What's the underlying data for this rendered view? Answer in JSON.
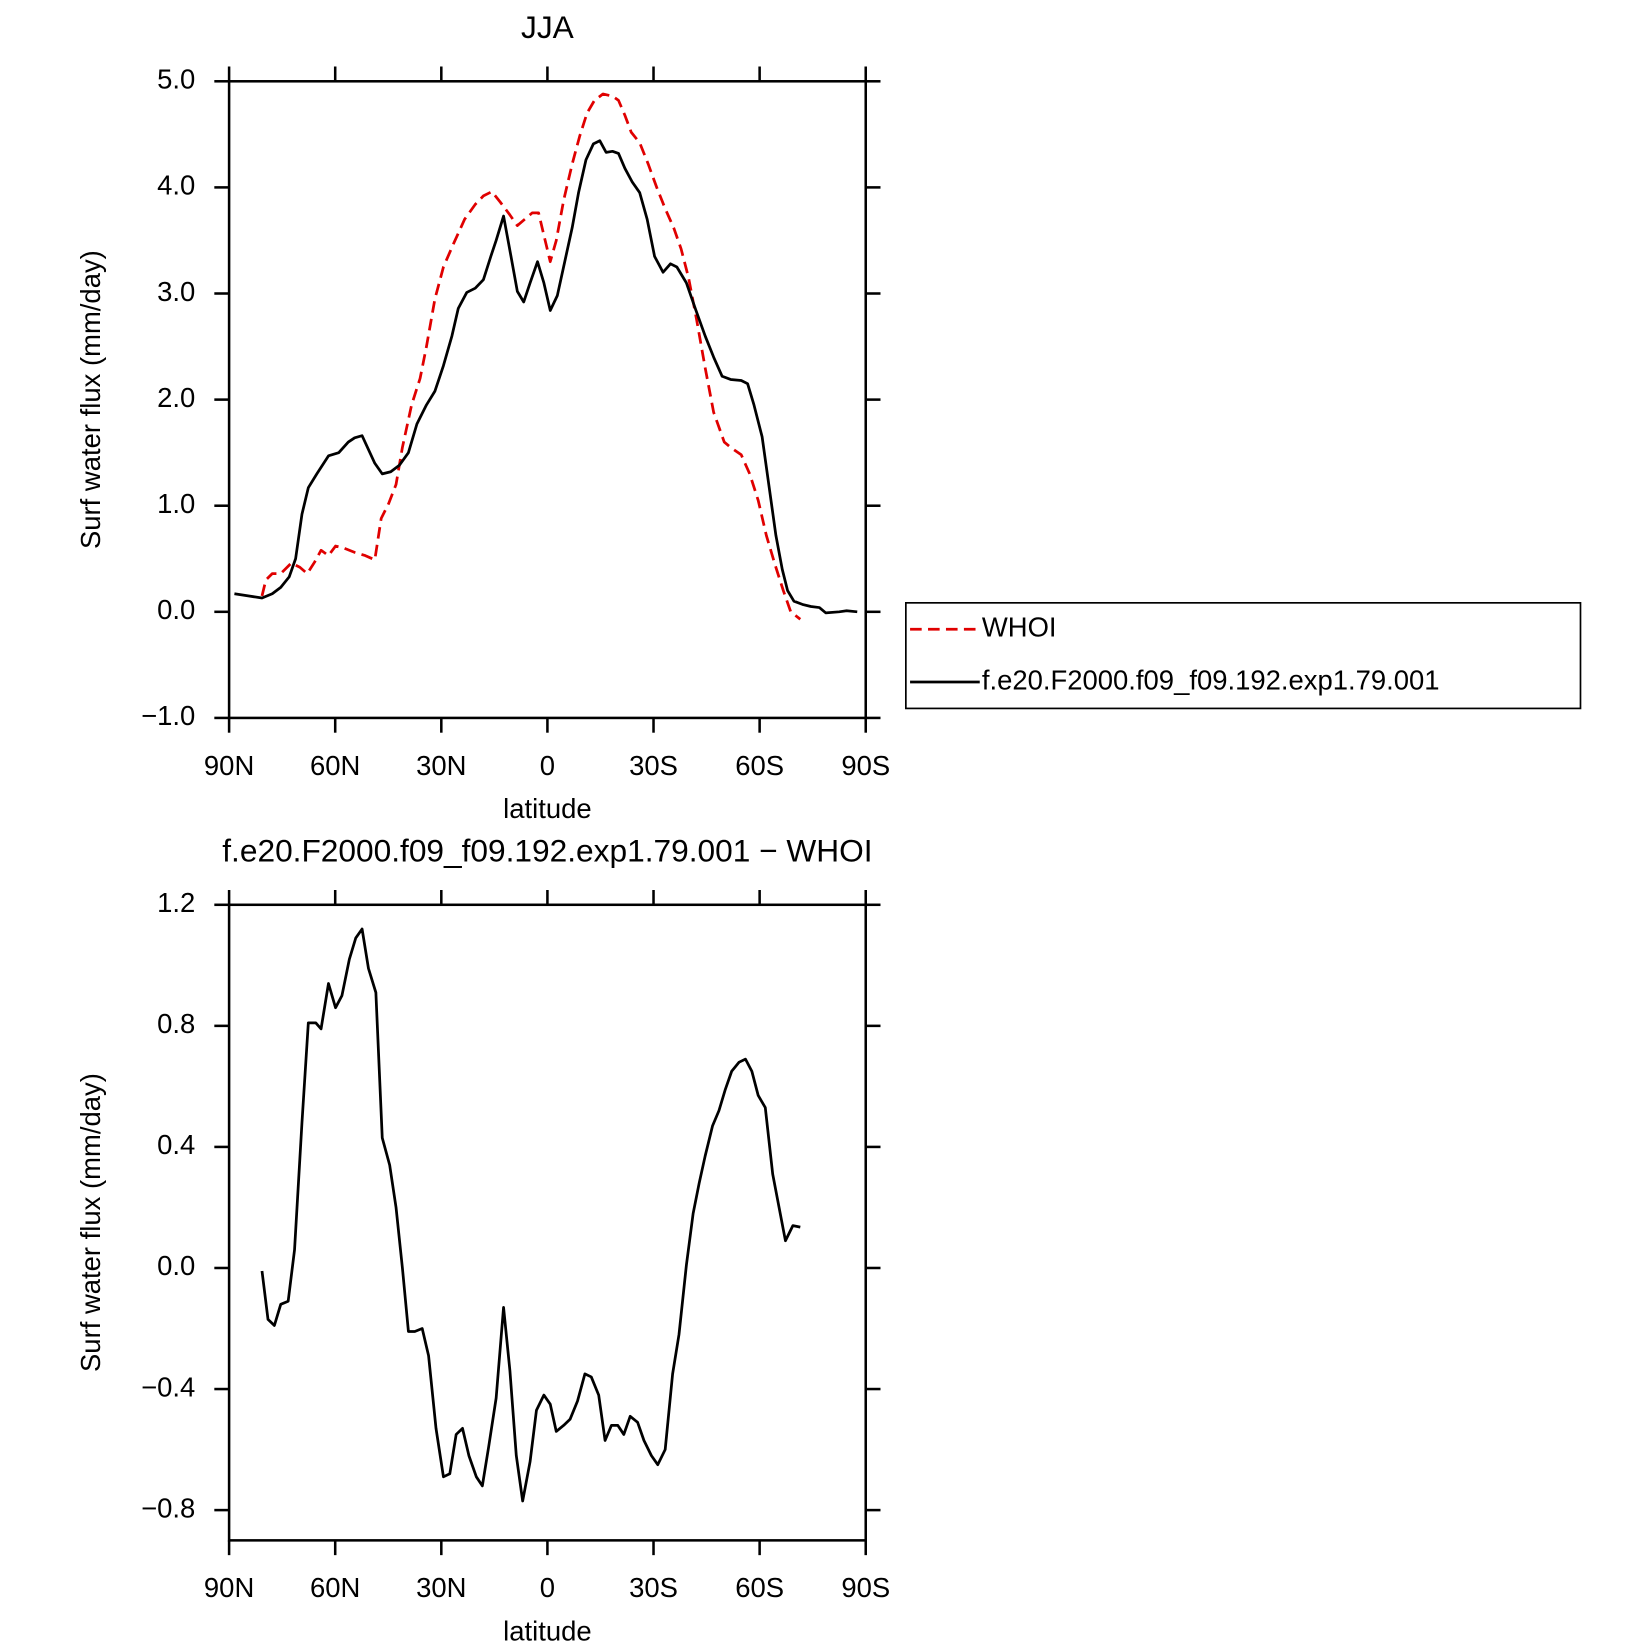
{
  "chart_data": [
    {
      "type": "line",
      "title": "JJA",
      "xlabel": "latitude",
      "ylabel": "Surf water flux (mm/day)",
      "xlim": [
        90,
        -90
      ],
      "xticks": [
        {
          "value": 90,
          "label": "90N"
        },
        {
          "value": 60,
          "label": "60N"
        },
        {
          "value": 30,
          "label": "30N"
        },
        0,
        {
          "value": -30,
          "label": "30S"
        },
        {
          "value": -60,
          "label": "60S"
        },
        {
          "value": -90,
          "label": "90S"
        }
      ],
      "ylim": [
        -1,
        5
      ],
      "yticks": [
        {
          "value": 5,
          "label": "5.0"
        },
        {
          "value": 4,
          "label": "4.0"
        },
        {
          "value": 3,
          "label": "3.0"
        },
        {
          "value": 2,
          "label": "2.0"
        },
        {
          "value": 1,
          "label": "1.0"
        },
        {
          "value": 0,
          "label": "0.0"
        },
        {
          "value": -1,
          "label": "−1.0"
        }
      ],
      "legend": "right",
      "series": [
        {
          "name": "WHOI",
          "color": "#e00000",
          "linestyle": "dashed",
          "x": [
            80.7,
            79.6,
            77.8,
            75.4,
            72.4,
            70,
            67.9,
            65.8,
            64,
            61.9,
            59.9,
            57.5,
            54.5,
            51.5,
            48.8,
            47,
            44.9,
            42.8,
            41,
            38.4,
            36,
            34.2,
            31.8,
            29.4,
            26.4,
            23.4,
            20.4,
            18.1,
            15.7,
            13.3,
            10.6,
            8.5,
            6.4,
            4.3,
            2.5,
            1,
            -0.8,
            -2.5,
            -4.6,
            -7,
            -9.1,
            -11.2,
            -13.3,
            -15.7,
            -18.4,
            -20.1,
            -21.9,
            -23.7,
            -26.1,
            -28.5,
            -30.9,
            -33.3,
            -35.7,
            -37.8,
            -39.9,
            -42.2,
            -44.6,
            -47,
            -50,
            -51.8,
            -54.8,
            -57.2,
            -59.6,
            -61.9,
            -64.3,
            -66.7,
            -68.8,
            -71.5
          ],
          "values": [
            0.15,
            0.3,
            0.36,
            0.36,
            0.46,
            0.42,
            0.36,
            0.47,
            0.58,
            0.53,
            0.62,
            0.6,
            0.56,
            0.53,
            0.49,
            0.88,
            1.02,
            1.2,
            1.55,
            1.95,
            2.2,
            2.5,
            2.95,
            3.25,
            3.48,
            3.7,
            3.84,
            3.92,
            3.96,
            3.86,
            3.74,
            3.64,
            3.7,
            3.76,
            3.76,
            3.55,
            3.3,
            3.5,
            3.88,
            4.22,
            4.48,
            4.7,
            4.82,
            4.88,
            4.86,
            4.82,
            4.68,
            4.52,
            4.42,
            4.22,
            4.0,
            3.8,
            3.62,
            3.42,
            3.15,
            2.75,
            2.3,
            1.88,
            1.6,
            1.55,
            1.48,
            1.3,
            1.05,
            0.72,
            0.45,
            0.2,
            0.0,
            -0.07
          ]
        },
        {
          "name": "f.e20.F2000.f09_f09.192.exp1.79.001",
          "color": "#000000",
          "linestyle": "solid",
          "x": [
            88.5,
            84.6,
            80.7,
            77.8,
            75.4,
            73,
            71.2,
            69.4,
            67.6,
            65.2,
            61.9,
            59,
            56.3,
            54.5,
            52.4,
            48.8,
            46.7,
            44.3,
            41.9,
            39.3,
            36.9,
            34.2,
            31.8,
            29.4,
            27,
            25.2,
            22.8,
            20.4,
            18.1,
            16,
            14.5,
            12.4,
            10.3,
            8.5,
            6.7,
            4.9,
            2.8,
            1,
            -0.8,
            -2.8,
            -4.9,
            -7,
            -8.8,
            -10.9,
            -13,
            -14.8,
            -16.6,
            -18.4,
            -20.1,
            -21.9,
            -24,
            -26.1,
            -28.2,
            -30.3,
            -32.7,
            -34.8,
            -36.6,
            -39.3,
            -41.9,
            -44.6,
            -47,
            -49.4,
            -51.8,
            -54.8,
            -56.6,
            -58.4,
            -60.7,
            -62.8,
            -64.6,
            -66.4,
            -67.9,
            -69.7,
            -72.1,
            -74.5,
            -76.9,
            -78.7,
            -82.5,
            -84.6,
            -87.6
          ],
          "values": [
            0.17,
            0.15,
            0.13,
            0.17,
            0.23,
            0.33,
            0.5,
            0.92,
            1.17,
            1.3,
            1.47,
            1.5,
            1.6,
            1.64,
            1.66,
            1.4,
            1.3,
            1.32,
            1.38,
            1.5,
            1.77,
            1.95,
            2.08,
            2.32,
            2.6,
            2.86,
            3.01,
            3.05,
            3.13,
            3.35,
            3.5,
            3.73,
            3.35,
            3.02,
            2.92,
            3.1,
            3.3,
            3.1,
            2.84,
            2.98,
            3.3,
            3.62,
            3.95,
            4.26,
            4.41,
            4.44,
            4.33,
            4.34,
            4.32,
            4.18,
            4.05,
            3.95,
            3.7,
            3.35,
            3.2,
            3.28,
            3.25,
            3.1,
            2.85,
            2.6,
            2.4,
            2.22,
            2.19,
            2.18,
            2.15,
            1.95,
            1.65,
            1.15,
            0.72,
            0.4,
            0.2,
            0.1,
            0.07,
            0.05,
            0.04,
            -0.01,
            0.0,
            0.01,
            0.0
          ]
        }
      ]
    },
    {
      "type": "line",
      "title": "f.e20.F2000.f09_f09.192.exp1.79.001 − WHOI",
      "xlabel": "latitude",
      "ylabel": "Surf water flux (mm/day)",
      "xlim": [
        90,
        -90
      ],
      "xticks": [
        {
          "value": 90,
          "label": "90N"
        },
        {
          "value": 60,
          "label": "60N"
        },
        {
          "value": 30,
          "label": "30N"
        },
        0,
        {
          "value": -30,
          "label": "30S"
        },
        {
          "value": -60,
          "label": "60S"
        },
        {
          "value": -90,
          "label": "90S"
        }
      ],
      "ylim": [
        -0.9,
        1.2
      ],
      "yticks": [
        1.2,
        0.8,
        0.4,
        {
          "value": 0,
          "label": "0.0"
        },
        {
          "value": -0.4,
          "label": "−0.4"
        },
        {
          "value": -0.8,
          "label": "−0.8"
        }
      ],
      "series": [
        {
          "color": "#000000",
          "linestyle": "solid",
          "x": [
            80.7,
            79,
            77.2,
            75.4,
            73.3,
            71.5,
            69.4,
            67.6,
            65.5,
            64,
            61.9,
            59.9,
            58.1,
            56,
            54.2,
            52.4,
            50.6,
            48.5,
            46.7,
            44.6,
            42.8,
            41,
            39.3,
            37.5,
            35.4,
            33.6,
            31.5,
            29.4,
            27.6,
            25.8,
            24,
            22.2,
            20.1,
            18.4,
            16.6,
            14.5,
            12.4,
            10.6,
            8.8,
            7,
            4.9,
            3.1,
            1,
            -0.8,
            -2.5,
            -4.6,
            -6.4,
            -8.5,
            -10.6,
            -12.4,
            -14.5,
            -16.3,
            -18.1,
            -19.9,
            -21.6,
            -23.4,
            -25.5,
            -27.3,
            -29.4,
            -31.2,
            -33.3,
            -35.4,
            -37.2,
            -39.3,
            -41.2,
            -42.9,
            -44.6,
            -46.7,
            -48.5,
            -50.3,
            -52.1,
            -54.2,
            -56,
            -57.8,
            -59.6,
            -61.6,
            -63.7,
            -65.5,
            -67.3,
            -69.4,
            -71.5
          ],
          "values": [
            -0.01,
            -0.17,
            -0.19,
            -0.12,
            -0.11,
            0.06,
            0.48,
            0.81,
            0.81,
            0.79,
            0.94,
            0.86,
            0.9,
            1.02,
            1.09,
            1.12,
            0.99,
            0.91,
            0.43,
            0.34,
            0.2,
            0.0,
            -0.21,
            -0.21,
            -0.2,
            -0.29,
            -0.53,
            -0.69,
            -0.68,
            -0.55,
            -0.53,
            -0.62,
            -0.69,
            -0.72,
            -0.59,
            -0.43,
            -0.13,
            -0.34,
            -0.62,
            -0.77,
            -0.64,
            -0.47,
            -0.42,
            -0.45,
            -0.54,
            -0.52,
            -0.5,
            -0.44,
            -0.35,
            -0.36,
            -0.42,
            -0.57,
            -0.52,
            -0.52,
            -0.55,
            -0.49,
            -0.51,
            -0.57,
            -0.62,
            -0.65,
            -0.6,
            -0.35,
            -0.22,
            0.01,
            0.18,
            0.28,
            0.37,
            0.47,
            0.52,
            0.59,
            0.65,
            0.68,
            0.69,
            0.65,
            0.57,
            0.53,
            0.31,
            0.2,
            0.09,
            0.14,
            0.135
          ]
        }
      ]
    }
  ]
}
